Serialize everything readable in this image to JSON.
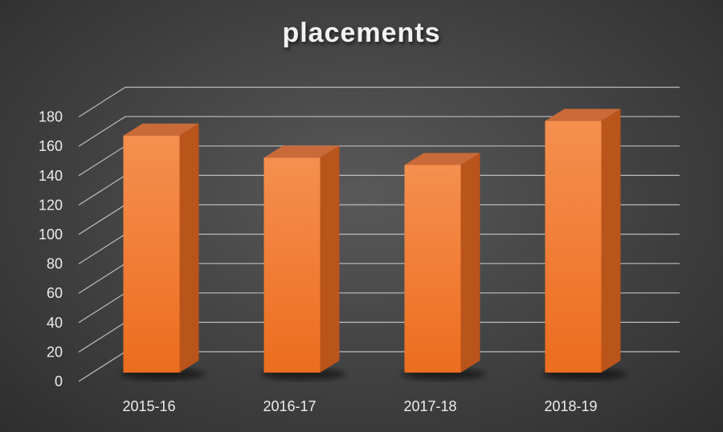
{
  "chart_data": {
    "type": "bar",
    "title": "placements",
    "categories": [
      "2015-16",
      "2016-17",
      "2017-18",
      "2018-19"
    ],
    "values": [
      170,
      155,
      150,
      180
    ],
    "ylim": [
      0,
      180
    ],
    "yticks": [
      0,
      20,
      40,
      60,
      80,
      100,
      120,
      140,
      160,
      180
    ],
    "xlabel": "",
    "ylabel": "",
    "grid": true,
    "three_d": true,
    "legend": "none"
  },
  "colors": {
    "bar_front_top": "#f58f4f",
    "bar_front_bottom": "#ec6d1e",
    "bar_side": "#b9541a",
    "bar_top": "#c96a38",
    "gridline": "#bdbdbd",
    "text": "#ededed"
  }
}
